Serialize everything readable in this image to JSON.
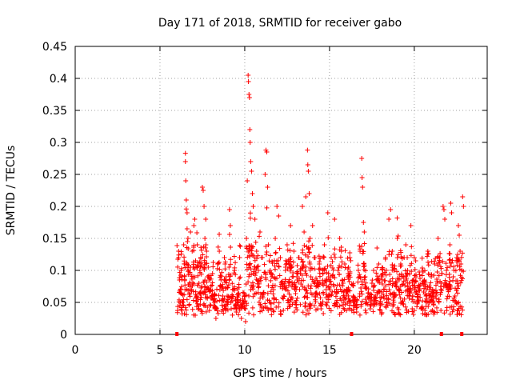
{
  "chart_data": {
    "type": "scatter",
    "title": "Day 171 of 2018, SRMTID for receiver gabo",
    "xlabel": "GPS time / hours",
    "ylabel": "SRMTID / TECUs",
    "xlim": [
      0,
      24.3
    ],
    "ylim": [
      0,
      0.45
    ],
    "x_ticks": [
      0,
      5,
      10,
      15,
      20
    ],
    "x_tick_labels": [
      "0",
      "5",
      "10",
      "15",
      "20"
    ],
    "y_ticks": [
      0,
      0.05,
      0.1,
      0.15,
      0.2,
      0.25,
      0.3,
      0.35,
      0.4,
      0.45
    ],
    "y_tick_labels": [
      "0",
      "0.05",
      "0.1",
      "0.15",
      "0.2",
      "0.25",
      "0.3",
      "0.35",
      "0.4",
      "0.45"
    ],
    "grid": true,
    "marker": "plus",
    "color": "#ff0000",
    "data_start_hour": 6.0,
    "data_end_hour": 22.9,
    "zero_markers_x": [
      6.0,
      16.3,
      21.6,
      22.8
    ],
    "series": [
      {
        "name": "SRMTID",
        "points": [
          [
            6.1,
            0.13
          ],
          [
            6.1,
            0.12
          ],
          [
            6.15,
            0.085
          ],
          [
            6.2,
            0.07
          ],
          [
            6.2,
            0.05
          ],
          [
            6.25,
            0.1
          ],
          [
            6.3,
            0.09
          ],
          [
            6.35,
            0.045
          ],
          [
            6.4,
            0.14
          ],
          [
            6.45,
            0.11
          ],
          [
            6.5,
            0.283
          ],
          [
            6.5,
            0.27
          ],
          [
            6.52,
            0.24
          ],
          [
            6.55,
            0.21
          ],
          [
            6.55,
            0.196
          ],
          [
            6.6,
            0.19
          ],
          [
            6.6,
            0.165
          ],
          [
            6.62,
            0.145
          ],
          [
            6.65,
            0.15
          ],
          [
            6.7,
            0.1
          ],
          [
            6.75,
            0.08
          ],
          [
            6.8,
            0.16
          ],
          [
            6.85,
            0.07
          ],
          [
            6.9,
            0.13
          ],
          [
            6.95,
            0.09
          ],
          [
            7.0,
            0.17
          ],
          [
            7.05,
            0.18
          ],
          [
            7.1,
            0.115
          ],
          [
            7.15,
            0.06
          ],
          [
            7.2,
            0.14
          ],
          [
            7.3,
            0.08
          ],
          [
            7.35,
            0.1
          ],
          [
            7.4,
            0.12
          ],
          [
            7.5,
            0.23
          ],
          [
            7.55,
            0.225
          ],
          [
            7.6,
            0.2
          ],
          [
            7.65,
            0.15
          ],
          [
            7.7,
            0.18
          ],
          [
            7.75,
            0.13
          ],
          [
            7.8,
            0.09
          ],
          [
            7.9,
            0.085
          ],
          [
            8.0,
            0.07
          ],
          [
            8.05,
            0.06
          ],
          [
            8.1,
            0.095
          ],
          [
            8.2,
            0.05
          ],
          [
            8.25,
            0.04
          ],
          [
            8.3,
            0.025
          ],
          [
            8.4,
            0.11
          ],
          [
            8.5,
            0.13
          ],
          [
            8.55,
            0.075
          ],
          [
            8.6,
            0.085
          ],
          [
            8.7,
            0.06
          ],
          [
            8.8,
            0.12
          ],
          [
            8.9,
            0.09
          ],
          [
            9.0,
            0.05
          ],
          [
            9.1,
            0.195
          ],
          [
            9.15,
            0.17
          ],
          [
            9.2,
            0.04
          ],
          [
            9.3,
            0.07
          ],
          [
            9.4,
            0.1
          ],
          [
            9.5,
            0.035
          ],
          [
            9.6,
            0.05
          ],
          [
            9.7,
            0.12
          ],
          [
            9.8,
            0.025
          ],
          [
            9.9,
            0.045
          ],
          [
            10.0,
            0.06
          ],
          [
            10.05,
            0.02
          ],
          [
            10.1,
            0.15
          ],
          [
            10.15,
            0.24
          ],
          [
            10.2,
            0.405
          ],
          [
            10.22,
            0.395
          ],
          [
            10.25,
            0.375
          ],
          [
            10.28,
            0.37
          ],
          [
            10.3,
            0.32
          ],
          [
            10.32,
            0.3
          ],
          [
            10.35,
            0.27
          ],
          [
            10.4,
            0.255
          ],
          [
            10.45,
            0.22
          ],
          [
            10.5,
            0.2
          ],
          [
            10.6,
            0.18
          ],
          [
            10.7,
            0.13
          ],
          [
            10.8,
            0.1
          ],
          [
            10.9,
            0.16
          ],
          [
            11.0,
            0.12
          ],
          [
            11.1,
            0.065
          ],
          [
            11.2,
            0.25
          ],
          [
            11.25,
            0.288
          ],
          [
            11.3,
            0.285
          ],
          [
            11.35,
            0.23
          ],
          [
            11.4,
            0.14
          ],
          [
            11.5,
            0.1
          ],
          [
            11.6,
            0.09
          ],
          [
            11.7,
            0.07
          ],
          [
            11.8,
            0.15
          ],
          [
            11.9,
            0.2
          ],
          [
            12.0,
            0.185
          ],
          [
            12.1,
            0.12
          ],
          [
            12.2,
            0.08
          ],
          [
            12.3,
            0.06
          ],
          [
            12.4,
            0.1
          ],
          [
            12.5,
            0.14
          ],
          [
            12.6,
            0.11
          ],
          [
            12.7,
            0.17
          ],
          [
            12.8,
            0.09
          ],
          [
            12.9,
            0.13
          ],
          [
            13.0,
            0.05
          ],
          [
            13.1,
            0.085
          ],
          [
            13.2,
            0.12
          ],
          [
            13.3,
            0.1
          ],
          [
            13.4,
            0.2
          ],
          [
            13.5,
            0.16
          ],
          [
            13.6,
            0.215
          ],
          [
            13.7,
            0.288
          ],
          [
            13.72,
            0.265
          ],
          [
            13.75,
            0.255
          ],
          [
            13.8,
            0.22
          ],
          [
            13.85,
            0.15
          ],
          [
            13.9,
            0.09
          ],
          [
            14.0,
            0.17
          ],
          [
            14.1,
            0.12
          ],
          [
            14.2,
            0.065
          ],
          [
            14.3,
            0.08
          ],
          [
            14.4,
            0.11
          ],
          [
            14.5,
            0.04
          ],
          [
            14.6,
            0.1
          ],
          [
            14.7,
            0.14
          ],
          [
            14.8,
            0.07
          ],
          [
            14.9,
            0.19
          ],
          [
            15.0,
            0.06
          ],
          [
            15.1,
            0.12
          ],
          [
            15.2,
            0.09
          ],
          [
            15.3,
            0.18
          ],
          [
            15.4,
            0.05
          ],
          [
            15.5,
            0.1
          ],
          [
            15.6,
            0.15
          ],
          [
            15.7,
            0.13
          ],
          [
            15.8,
            0.08
          ],
          [
            15.9,
            0.11
          ],
          [
            16.0,
            0.07
          ],
          [
            16.1,
            0.095
          ],
          [
            16.2,
            0.12
          ],
          [
            16.4,
            0.06
          ],
          [
            16.5,
            0.045
          ],
          [
            16.6,
            0.035
          ],
          [
            16.7,
            0.1
          ],
          [
            16.8,
            0.13
          ],
          [
            16.9,
            0.275
          ],
          [
            16.92,
            0.245
          ],
          [
            16.95,
            0.23
          ],
          [
            17.0,
            0.175
          ],
          [
            17.05,
            0.16
          ],
          [
            17.1,
            0.09
          ],
          [
            17.2,
            0.05
          ],
          [
            17.3,
            0.065
          ],
          [
            17.4,
            0.04
          ],
          [
            17.5,
            0.08
          ],
          [
            17.6,
            0.1
          ],
          [
            17.7,
            0.06
          ],
          [
            17.8,
            0.135
          ],
          [
            17.9,
            0.11
          ],
          [
            18.0,
            0.045
          ],
          [
            18.1,
            0.09
          ],
          [
            18.2,
            0.07
          ],
          [
            18.3,
            0.12
          ],
          [
            18.4,
            0.055
          ],
          [
            18.5,
            0.18
          ],
          [
            18.6,
            0.195
          ],
          [
            18.7,
            0.13
          ],
          [
            18.8,
            0.1
          ],
          [
            18.9,
            0.08
          ],
          [
            19.0,
            0.15
          ],
          [
            19.1,
            0.07
          ],
          [
            19.2,
            0.11
          ],
          [
            19.3,
            0.09
          ],
          [
            19.4,
            0.12
          ],
          [
            19.5,
            0.14
          ],
          [
            19.6,
            0.1
          ],
          [
            19.7,
            0.08
          ],
          [
            19.8,
            0.17
          ],
          [
            19.9,
            0.06
          ],
          [
            20.0,
            0.12
          ],
          [
            20.1,
            0.09
          ],
          [
            20.2,
            0.05
          ],
          [
            20.3,
            0.075
          ],
          [
            20.4,
            0.04
          ],
          [
            20.5,
            0.1
          ],
          [
            20.6,
            0.085
          ],
          [
            20.7,
            0.06
          ],
          [
            20.8,
            0.13
          ],
          [
            20.9,
            0.07
          ],
          [
            21.0,
            0.09
          ],
          [
            21.1,
            0.05
          ],
          [
            21.2,
            0.11
          ],
          [
            21.3,
            0.065
          ],
          [
            21.4,
            0.15
          ],
          [
            21.5,
            0.12
          ],
          [
            21.6,
            0.08
          ],
          [
            21.7,
            0.2
          ],
          [
            21.75,
            0.195
          ],
          [
            21.8,
            0.18
          ],
          [
            21.9,
            0.1
          ],
          [
            22.0,
            0.07
          ],
          [
            22.1,
            0.14
          ],
          [
            22.15,
            0.205
          ],
          [
            22.2,
            0.19
          ],
          [
            22.3,
            0.09
          ],
          [
            22.4,
            0.06
          ],
          [
            22.5,
            0.12
          ],
          [
            22.6,
            0.17
          ],
          [
            22.65,
            0.155
          ],
          [
            22.7,
            0.13
          ],
          [
            22.75,
            0.11
          ],
          [
            22.8,
            0.1
          ],
          [
            22.85,
            0.215
          ],
          [
            22.9,
            0.2
          ]
        ]
      }
    ]
  }
}
